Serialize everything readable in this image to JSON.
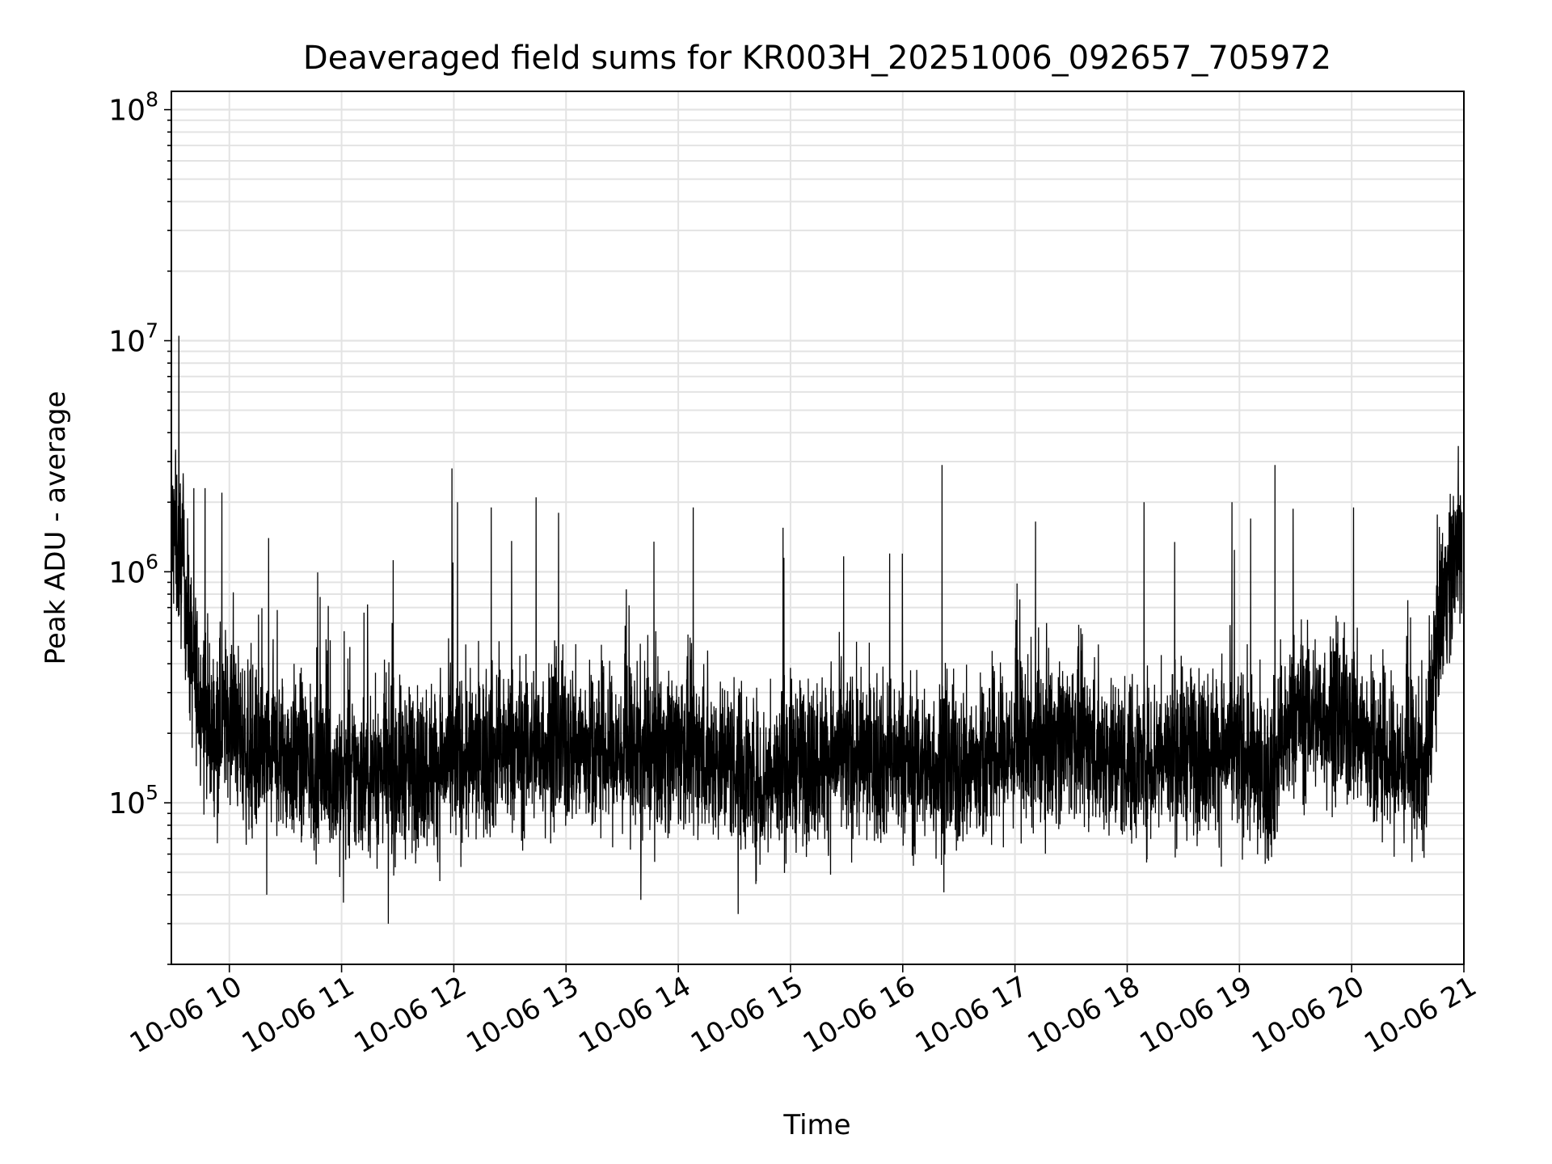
{
  "chart_data": {
    "type": "line",
    "title": "Deaveraged field sums for KR003H_20251006_092657_705972",
    "xlabel": "Time",
    "ylabel": "Peak ADU - average",
    "x_range": [
      "2025-10-06 09:29",
      "2025-10-06 20:59"
    ],
    "xlim": [
      "2025-10-06 09:29",
      "2025-10-06 21:00"
    ],
    "ylim": [
      20000,
      120000000
    ],
    "yscale": "log",
    "grid": true,
    "x_ticks": [
      {
        "date": "2025-10-06 10:00",
        "label": "10-06 10"
      },
      {
        "date": "2025-10-06 11:00",
        "label": "10-06 11"
      },
      {
        "date": "2025-10-06 12:00",
        "label": "10-06 12"
      },
      {
        "date": "2025-10-06 13:00",
        "label": "10-06 13"
      },
      {
        "date": "2025-10-06 14:00",
        "label": "10-06 14"
      },
      {
        "date": "2025-10-06 15:00",
        "label": "10-06 15"
      },
      {
        "date": "2025-10-06 16:00",
        "label": "10-06 16"
      },
      {
        "date": "2025-10-06 17:00",
        "label": "10-06 17"
      },
      {
        "date": "2025-10-06 18:00",
        "label": "10-06 18"
      },
      {
        "date": "2025-10-06 19:00",
        "label": "10-06 19"
      },
      {
        "date": "2025-10-06 20:00",
        "label": "10-06 20"
      },
      {
        "date": "2025-10-06 21:00",
        "label": "10-06 21"
      }
    ],
    "y_ticks": [
      {
        "value": 100000,
        "base": "10",
        "exp": "5"
      },
      {
        "value": 1000000,
        "base": "10",
        "exp": "6"
      },
      {
        "value": 10000000,
        "base": "10",
        "exp": "7"
      },
      {
        "value": 100000000,
        "base": "10",
        "exp": "8"
      }
    ],
    "series": [
      {
        "color": "#000000",
        "baseline": [
          [
            "2025-10-06 09:29",
            1500000
          ],
          [
            "2025-10-06 09:35",
            1100000
          ],
          [
            "2025-10-06 09:40",
            400000
          ],
          [
            "2025-10-06 09:50",
            200000
          ],
          [
            "2025-10-06 10:00",
            250000
          ],
          [
            "2025-10-06 10:10",
            160000
          ],
          [
            "2025-10-06 10:30",
            160000
          ],
          [
            "2025-10-06 11:00",
            130000
          ],
          [
            "2025-10-06 11:30",
            140000
          ],
          [
            "2025-10-06 12:00",
            150000
          ],
          [
            "2025-10-06 12:30",
            170000
          ],
          [
            "2025-10-06 13:00",
            180000
          ],
          [
            "2025-10-06 13:30",
            160000
          ],
          [
            "2025-10-06 14:00",
            180000
          ],
          [
            "2025-10-06 14:30",
            150000
          ],
          [
            "2025-10-06 14:45",
            120000
          ],
          [
            "2025-10-06 15:00",
            150000
          ],
          [
            "2025-10-06 15:30",
            160000
          ],
          [
            "2025-10-06 16:00",
            150000
          ],
          [
            "2025-10-06 16:30",
            140000
          ],
          [
            "2025-10-06 17:00",
            170000
          ],
          [
            "2025-10-06 17:30",
            200000
          ],
          [
            "2025-10-06 18:00",
            150000
          ],
          [
            "2025-10-06 18:30",
            170000
          ],
          [
            "2025-10-06 19:00",
            170000
          ],
          [
            "2025-10-06 19:15",
            120000
          ],
          [
            "2025-10-06 19:30",
            250000
          ],
          [
            "2025-10-06 20:00",
            220000
          ],
          [
            "2025-10-06 20:20",
            150000
          ],
          [
            "2025-10-06 20:40",
            140000
          ],
          [
            "2025-10-06 20:45",
            500000
          ],
          [
            "2025-10-06 20:50",
            900000
          ],
          [
            "2025-10-06 20:59",
            1400000
          ]
        ],
        "spikes": [
          [
            "2025-10-06 09:33",
            10500000
          ],
          [
            "2025-10-06 09:41",
            2300000
          ],
          [
            "2025-10-06 09:47",
            2300000
          ],
          [
            "2025-10-06 09:56",
            2200000
          ],
          [
            "2025-10-06 10:21",
            1400000
          ],
          [
            "2025-10-06 11:27",
            600000
          ],
          [
            "2025-10-06 11:59",
            2800000
          ],
          [
            "2025-10-06 12:02",
            2000000
          ],
          [
            "2025-10-06 12:20",
            1900000
          ],
          [
            "2025-10-06 12:44",
            2100000
          ],
          [
            "2025-10-06 12:56",
            1800000
          ],
          [
            "2025-10-06 13:47",
            1350000
          ],
          [
            "2025-10-06 14:08",
            1900000
          ],
          [
            "2025-10-06 14:56",
            1550000
          ],
          [
            "2025-10-06 15:53",
            1200000
          ],
          [
            "2025-10-06 16:21",
            2900000
          ],
          [
            "2025-10-06 17:11",
            1650000
          ],
          [
            "2025-10-06 18:09",
            2000000
          ],
          [
            "2025-10-06 18:56",
            2000000
          ],
          [
            "2025-10-06 19:06",
            1700000
          ],
          [
            "2025-10-06 19:19",
            2900000
          ],
          [
            "2025-10-06 20:01",
            1900000
          ],
          [
            "2025-10-06 20:57",
            3500000
          ]
        ],
        "dips": [
          [
            "2025-10-06 11:25",
            30000
          ],
          [
            "2025-10-06 11:01",
            37000
          ],
          [
            "2025-10-06 13:40",
            38000
          ],
          [
            "2025-10-06 14:32",
            33000
          ],
          [
            "2025-10-06 16:22",
            41000
          ],
          [
            "2025-10-06 10:20",
            40000
          ]
        ],
        "noise_decades": 0.32
      }
    ]
  }
}
